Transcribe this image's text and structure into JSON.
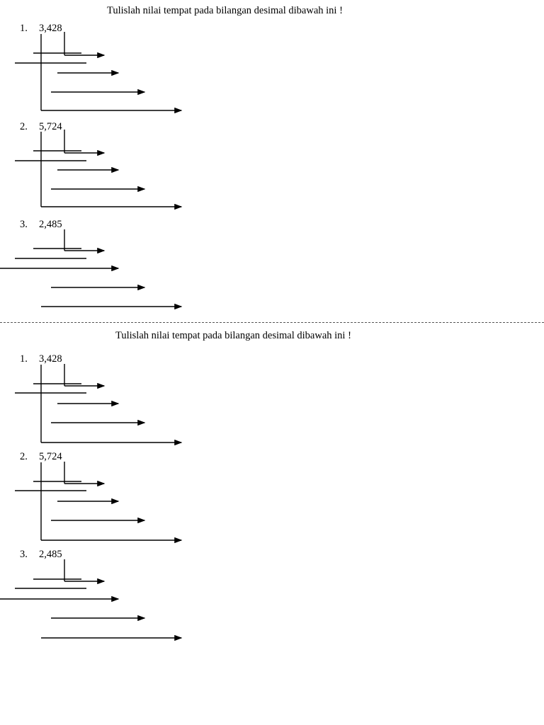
{
  "worksheets": [
    {
      "instruction": "Tulislah nilai tempat pada bilangan desimal dibawah ini !",
      "problems": [
        {
          "number": "1.",
          "value": "3,428"
        },
        {
          "number": "2.",
          "value": "5,724"
        },
        {
          "number": "3.",
          "value": "2,485"
        }
      ]
    },
    {
      "instruction": "Tulislah nilai tempat pada bilangan desimal dibawah ini !",
      "problems": [
        {
          "number": "1.",
          "value": "3,428"
        },
        {
          "number": "2.",
          "value": "5,724"
        },
        {
          "number": "3.",
          "value": "2,485"
        }
      ]
    }
  ],
  "colors": {
    "ink": "#000000",
    "cut_line": "#555555"
  }
}
